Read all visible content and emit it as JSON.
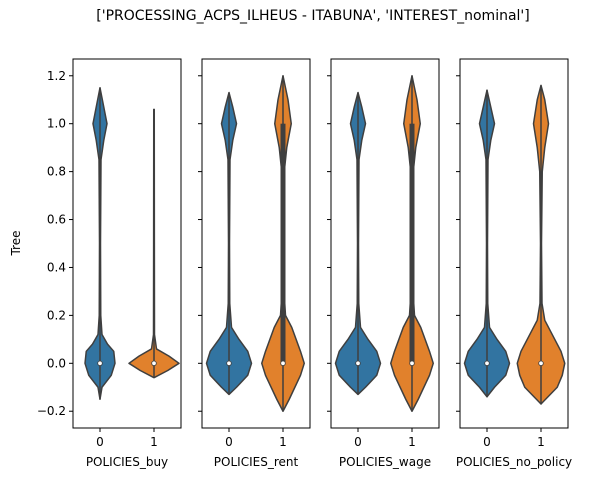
{
  "chart_data": {
    "type": "violin",
    "title": "['PROCESSING_ACPS_ILHEUS - ITABUNA', 'INTEREST_nominal']",
    "ylabel": "Tree",
    "ylim": [
      -0.27,
      1.27
    ],
    "yticks": [
      -0.2,
      0.0,
      0.2,
      0.4,
      0.6,
      0.8,
      1.0,
      1.2
    ],
    "ytick_labels": [
      "−0.2",
      "0.0",
      "0.2",
      "0.4",
      "0.6",
      "0.8",
      "1.0",
      "1.2"
    ],
    "shared_y": true,
    "grid": false,
    "colors": {
      "0": "#3274a1",
      "1": "#e1812c"
    },
    "panels": [
      {
        "xlabel": "POLICIES_buy",
        "categories": [
          "0",
          "1"
        ],
        "violins": [
          {
            "category": "0",
            "color": "#3274a1",
            "min": -0.15,
            "max": 1.15,
            "median": 0.0,
            "q1": 0.0,
            "q3": 0.0,
            "profile": [
              [
                -0.15,
                0.0
              ],
              [
                -0.1,
                0.08
              ],
              [
                -0.05,
                0.45
              ],
              [
                0.0,
                0.6
              ],
              [
                0.05,
                0.55
              ],
              [
                0.08,
                0.3
              ],
              [
                0.12,
                0.08
              ],
              [
                0.2,
                0.03
              ],
              [
                0.5,
                0.02
              ],
              [
                0.85,
                0.04
              ],
              [
                0.93,
                0.15
              ],
              [
                1.0,
                0.28
              ],
              [
                1.07,
                0.15
              ],
              [
                1.15,
                0.0
              ]
            ]
          },
          {
            "category": "1",
            "color": "#e1812c",
            "min": -0.06,
            "max": 1.06,
            "median": 0.0,
            "q1": 0.0,
            "q3": 0.0,
            "profile": [
              [
                -0.06,
                0.0
              ],
              [
                -0.03,
                0.55
              ],
              [
                0.0,
                1.0
              ],
              [
                0.03,
                0.6
              ],
              [
                0.06,
                0.1
              ],
              [
                0.12,
                0.02
              ],
              [
                0.5,
                0.015
              ],
              [
                1.06,
                0.01
              ]
            ]
          }
        ]
      },
      {
        "xlabel": "POLICIES_rent",
        "categories": [
          "0",
          "1"
        ],
        "violins": [
          {
            "category": "0",
            "color": "#3274a1",
            "min": -0.13,
            "max": 1.13,
            "median": 0.0,
            "q1": 0.0,
            "q3": 0.0,
            "profile": [
              [
                -0.13,
                0.0
              ],
              [
                -0.1,
                0.3
              ],
              [
                -0.05,
                0.75
              ],
              [
                0.0,
                0.9
              ],
              [
                0.05,
                0.75
              ],
              [
                0.1,
                0.4
              ],
              [
                0.15,
                0.1
              ],
              [
                0.25,
                0.03
              ],
              [
                0.5,
                0.02
              ],
              [
                0.85,
                0.04
              ],
              [
                0.93,
                0.15
              ],
              [
                1.0,
                0.3
              ],
              [
                1.07,
                0.15
              ],
              [
                1.13,
                0.0
              ]
            ]
          },
          {
            "category": "1",
            "color": "#e1812c",
            "min": -0.2,
            "max": 1.2,
            "median": 0.0,
            "q1": 0.0,
            "q3": 1.0,
            "profile": [
              [
                -0.2,
                0.0
              ],
              [
                -0.15,
                0.25
              ],
              [
                -0.05,
                0.7
              ],
              [
                0.0,
                0.85
              ],
              [
                0.05,
                0.7
              ],
              [
                0.15,
                0.35
              ],
              [
                0.2,
                0.1
              ],
              [
                0.3,
                0.04
              ],
              [
                0.5,
                0.03
              ],
              [
                0.8,
                0.05
              ],
              [
                0.9,
                0.15
              ],
              [
                1.0,
                0.33
              ],
              [
                1.1,
                0.2
              ],
              [
                1.2,
                0.0
              ]
            ]
          }
        ]
      },
      {
        "xlabel": "POLICIES_wage",
        "categories": [
          "0",
          "1"
        ],
        "violins": [
          {
            "category": "0",
            "color": "#3274a1",
            "min": -0.13,
            "max": 1.13,
            "median": 0.0,
            "q1": 0.0,
            "q3": 0.0,
            "profile": [
              [
                -0.13,
                0.0
              ],
              [
                -0.1,
                0.3
              ],
              [
                -0.05,
                0.75
              ],
              [
                0.0,
                0.9
              ],
              [
                0.05,
                0.75
              ],
              [
                0.1,
                0.4
              ],
              [
                0.15,
                0.1
              ],
              [
                0.25,
                0.03
              ],
              [
                0.5,
                0.02
              ],
              [
                0.85,
                0.04
              ],
              [
                0.93,
                0.15
              ],
              [
                1.0,
                0.3
              ],
              [
                1.07,
                0.15
              ],
              [
                1.13,
                0.0
              ]
            ]
          },
          {
            "category": "1",
            "color": "#e1812c",
            "min": -0.2,
            "max": 1.2,
            "median": 0.0,
            "q1": 0.0,
            "q3": 1.0,
            "profile": [
              [
                -0.2,
                0.0
              ],
              [
                -0.15,
                0.25
              ],
              [
                -0.05,
                0.7
              ],
              [
                0.0,
                0.85
              ],
              [
                0.05,
                0.7
              ],
              [
                0.15,
                0.35
              ],
              [
                0.2,
                0.1
              ],
              [
                0.3,
                0.04
              ],
              [
                0.5,
                0.03
              ],
              [
                0.8,
                0.05
              ],
              [
                0.9,
                0.15
              ],
              [
                1.0,
                0.33
              ],
              [
                1.1,
                0.2
              ],
              [
                1.2,
                0.0
              ]
            ]
          }
        ]
      },
      {
        "xlabel": "POLICIES_no_policy",
        "categories": [
          "0",
          "1"
        ],
        "violins": [
          {
            "category": "0",
            "color": "#3274a1",
            "min": -0.14,
            "max": 1.14,
            "median": 0.0,
            "q1": 0.0,
            "q3": 0.0,
            "profile": [
              [
                -0.14,
                0.0
              ],
              [
                -0.1,
                0.3
              ],
              [
                -0.05,
                0.75
              ],
              [
                0.0,
                0.9
              ],
              [
                0.05,
                0.75
              ],
              [
                0.1,
                0.4
              ],
              [
                0.15,
                0.1
              ],
              [
                0.25,
                0.03
              ],
              [
                0.5,
                0.02
              ],
              [
                0.85,
                0.04
              ],
              [
                0.93,
                0.15
              ],
              [
                1.0,
                0.3
              ],
              [
                1.07,
                0.15
              ],
              [
                1.14,
                0.0
              ]
            ]
          },
          {
            "category": "1",
            "color": "#e1812c",
            "min": -0.17,
            "max": 1.16,
            "median": 0.0,
            "q1": 0.0,
            "q3": 0.0,
            "profile": [
              [
                -0.17,
                0.0
              ],
              [
                -0.1,
                0.65
              ],
              [
                -0.05,
                0.85
              ],
              [
                0.0,
                0.95
              ],
              [
                0.05,
                0.8
              ],
              [
                0.12,
                0.45
              ],
              [
                0.18,
                0.15
              ],
              [
                0.25,
                0.04
              ],
              [
                0.5,
                0.02
              ],
              [
                0.8,
                0.05
              ],
              [
                0.9,
                0.15
              ],
              [
                1.0,
                0.3
              ],
              [
                1.1,
                0.15
              ],
              [
                1.16,
                0.0
              ]
            ]
          }
        ]
      }
    ]
  }
}
